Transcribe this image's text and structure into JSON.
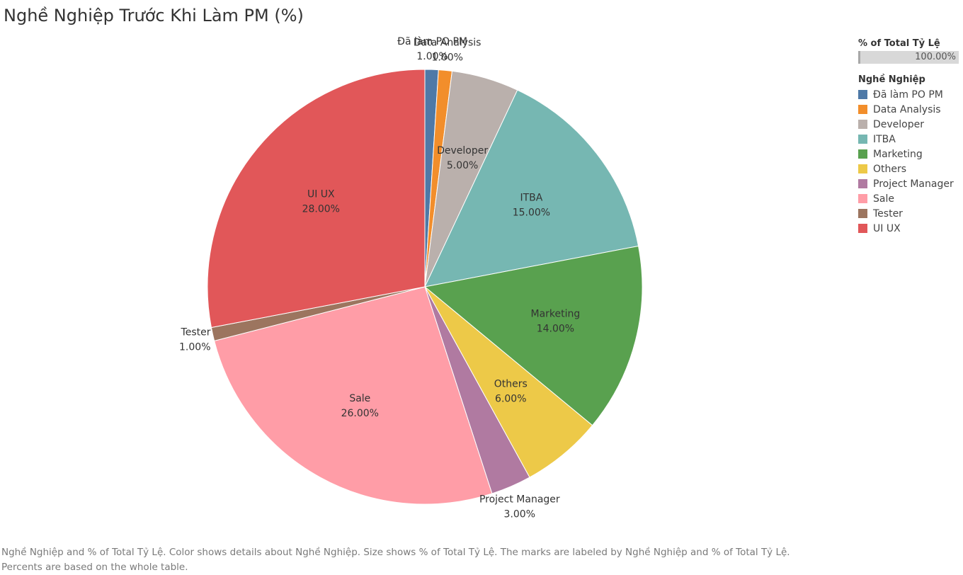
{
  "title": "Nghề Nghiệp Trước Khi Làm PM (%)",
  "legend": {
    "size_header": "% of Total Tỷ Lệ",
    "size_value": "100.00%",
    "color_header": "Nghề Nghiệp"
  },
  "footer": {
    "line1": "Nghề Nghiệp and % of Total Tỷ Lệ.  Color shows details about Nghề Nghiệp.  Size shows % of Total Tỷ Lệ.  The marks are labeled by Nghề Nghiệp and % of Total Tỷ Lệ.",
    "line2": "Percents are based on the whole table."
  },
  "chart_data": {
    "type": "pie",
    "title": "Nghề Nghiệp Trước Khi Làm PM (%)",
    "legend_position": "right",
    "slices": [
      {
        "label": "Đã làm PO PM",
        "value": 1.0,
        "display": "1.00%",
        "color": "#4e79a7",
        "label_side": "outside"
      },
      {
        "label": "Data Analysis",
        "value": 1.0,
        "display": "1.00%",
        "color": "#f28e2b",
        "label_side": "outside"
      },
      {
        "label": "Developer",
        "value": 5.0,
        "display": "5.00%",
        "color": "#bab0ac",
        "label_side": "inside"
      },
      {
        "label": "ITBA",
        "value": 15.0,
        "display": "15.00%",
        "color": "#76b7b2",
        "label_side": "inside"
      },
      {
        "label": "Marketing",
        "value": 14.0,
        "display": "14.00%",
        "color": "#59a14f",
        "label_side": "inside"
      },
      {
        "label": "Others",
        "value": 6.0,
        "display": "6.00%",
        "color": "#edc948",
        "label_side": "inside"
      },
      {
        "label": "Project Manager",
        "value": 3.0,
        "display": "3.00%",
        "color": "#b07aa1",
        "label_side": "outside"
      },
      {
        "label": "Sale",
        "value": 26.0,
        "display": "26.00%",
        "color": "#ff9da7",
        "label_side": "inside"
      },
      {
        "label": "Tester",
        "value": 1.0,
        "display": "1.00%",
        "color": "#9c755f",
        "label_side": "outside"
      },
      {
        "label": "UI UX",
        "value": 28.0,
        "display": "28.00%",
        "color": "#e15759",
        "label_side": "inside"
      }
    ]
  }
}
